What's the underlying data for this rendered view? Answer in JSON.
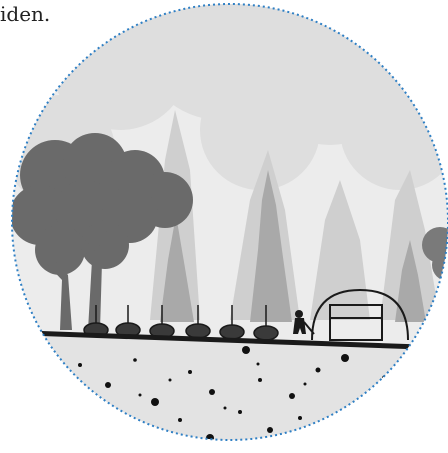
{
  "caption": {
    "text": "iden."
  },
  "illustration": {
    "scene": "garden-in-forest-clearing",
    "colors": {
      "circle_border": "#2e7fc4",
      "ground_line": "#1a1a1a",
      "soil": "#e3e3e3",
      "soil_dots": "#111111",
      "tree_dark": "#6a6a6a",
      "tree_mid": "#9a9a9a",
      "tree_light": "#c6c6c6",
      "tree_faint": "#dedede",
      "sky": "#ececec",
      "figure": "#1a1a1a"
    }
  }
}
